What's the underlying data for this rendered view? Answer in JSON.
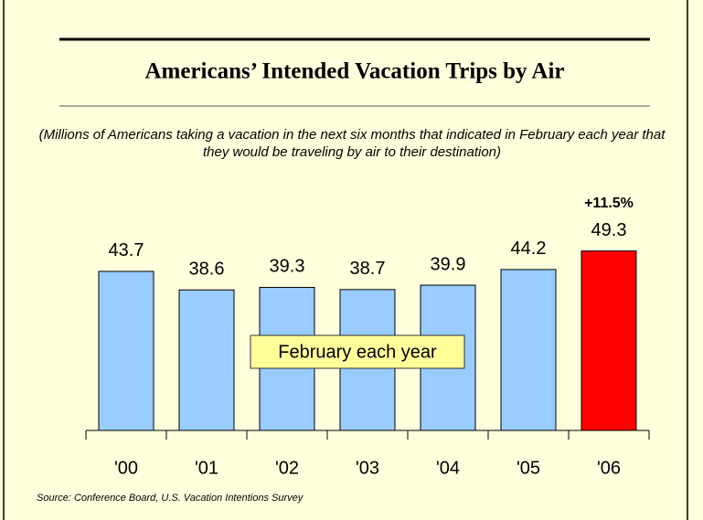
{
  "chart_data": {
    "type": "bar",
    "title": "Americans’ Intended Vacation Trips by Air",
    "subtitle": "(Millions of Americans taking a vacation in the next six months that indicated in February each year that they would be traveling by air to their destination)",
    "categories": [
      "'00",
      "'01",
      "'02",
      "'03",
      "'04",
      "'05",
      "'06"
    ],
    "values": [
      43.7,
      38.6,
      39.3,
      38.7,
      39.9,
      44.2,
      49.3
    ],
    "colors": [
      "#99ccff",
      "#99ccff",
      "#99ccff",
      "#99ccff",
      "#99ccff",
      "#99ccff",
      "#ff0000"
    ],
    "ylim": [
      0,
      60
    ],
    "change_label": "+11.5%",
    "note": "February each year",
    "source": "Source: Conference Board, U.S. Vacation Intentions Survey"
  }
}
